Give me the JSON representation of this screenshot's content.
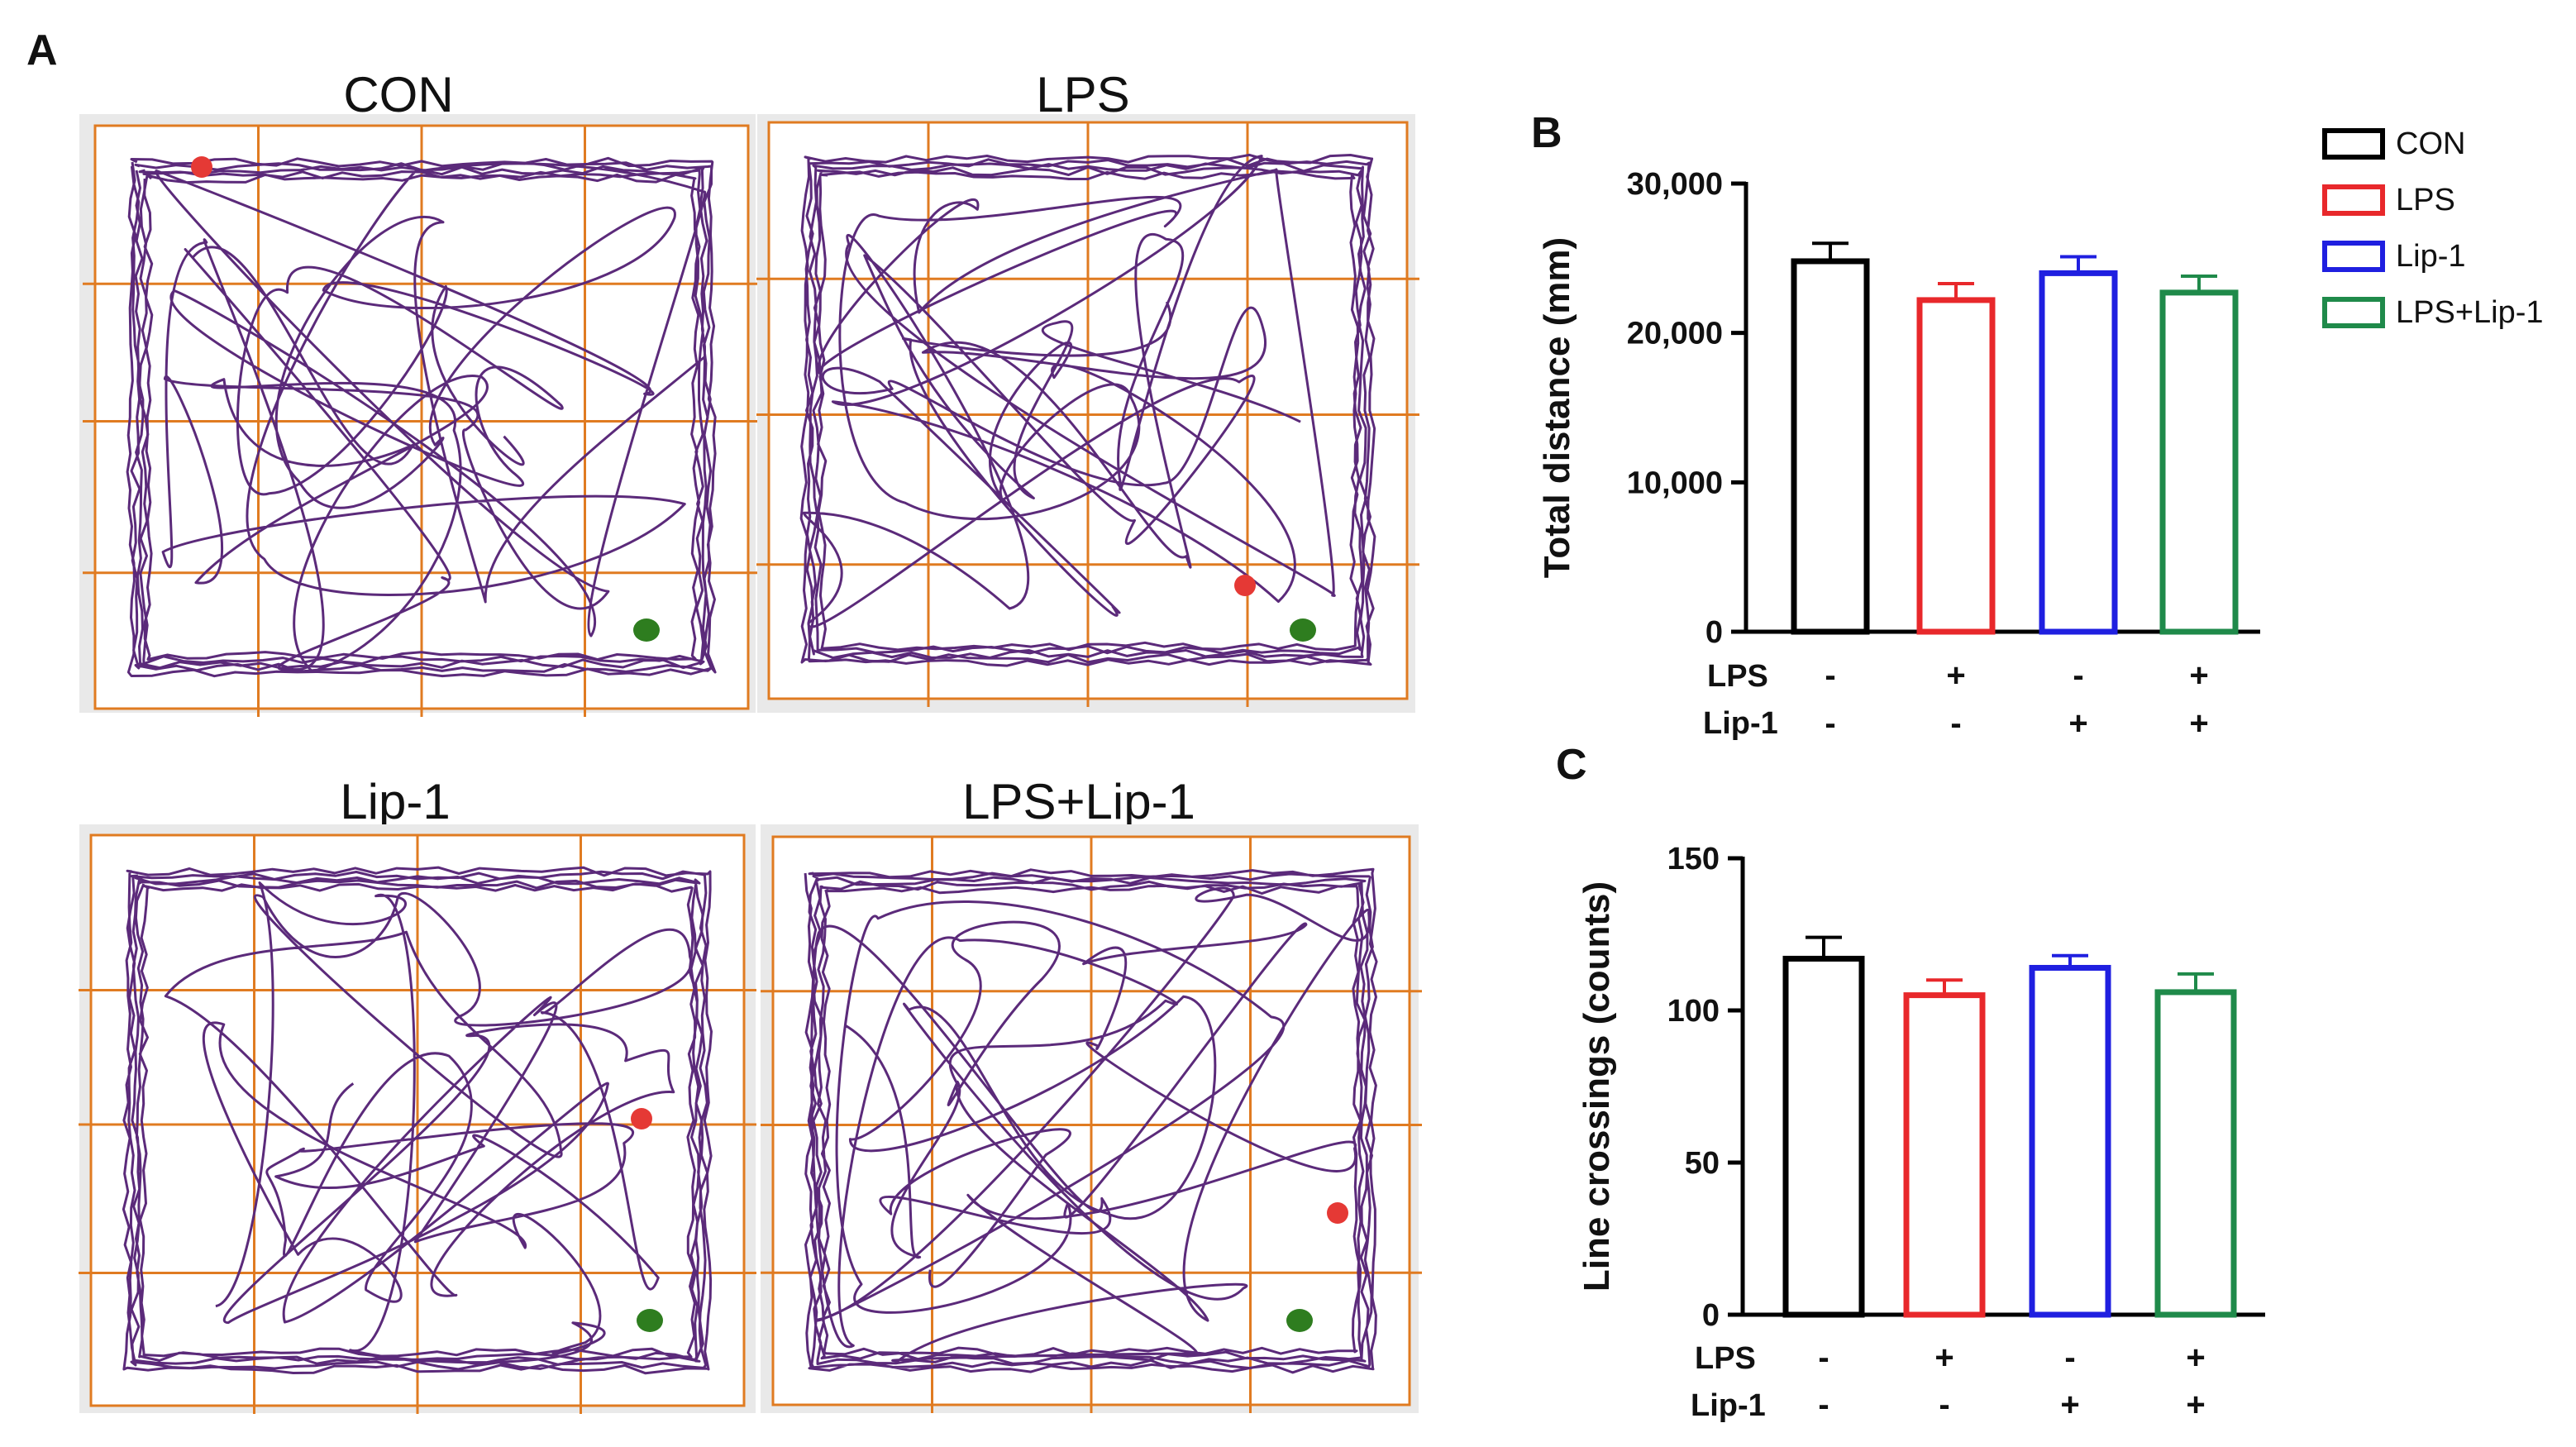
{
  "panel_labels": {
    "a": "A",
    "b": "B",
    "c": "C"
  },
  "track_panels": [
    {
      "title": "CON",
      "start_color": "#e53935",
      "end_color": "#2e7d1f"
    },
    {
      "title": "LPS",
      "start_color": "#e53935",
      "end_color": "#2e7d1f"
    },
    {
      "title": "Lip-1",
      "start_color": "#e53935",
      "end_color": "#2e7d1f"
    },
    {
      "title": "LPS+Lip-1",
      "start_color": "#e53935",
      "end_color": "#2e7d1f"
    }
  ],
  "colors": {
    "track": "#5b2a7a",
    "grid": "#e07b21",
    "panel_bg": "#e9e9e9"
  },
  "conditions": {
    "row1_label": "LPS",
    "row2_label": "Lip-1",
    "row1_signs": [
      "-",
      "+",
      "-",
      "+"
    ],
    "row2_signs": [
      "-",
      "-",
      "+",
      "+"
    ]
  },
  "legend": [
    {
      "label": "CON",
      "color": "#000000"
    },
    {
      "label": "LPS",
      "color": "#e8282b"
    },
    {
      "label": "Lip-1",
      "color": "#1f1fe0"
    },
    {
      "label": "LPS+Lip-1",
      "color": "#1f8a4a"
    }
  ],
  "chart_data": [
    {
      "id": "B",
      "type": "bar",
      "categories": [
        "CON",
        "LPS",
        "Lip-1",
        "LPS+Lip-1"
      ],
      "values": [
        24800,
        22200,
        24000,
        22700
      ],
      "errors": [
        1200,
        1100,
        1100,
        1100
      ],
      "colors": [
        "#000000",
        "#e8282b",
        "#1f1fe0",
        "#1f8a4a"
      ],
      "ylabel": "Total distance (mm)",
      "ylim": [
        0,
        30000
      ],
      "yticks": [
        0,
        10000,
        20000,
        30000
      ],
      "ytick_labels": [
        "0",
        "10,000",
        "20,000",
        "30,000"
      ]
    },
    {
      "id": "C",
      "type": "bar",
      "categories": [
        "CON",
        "LPS",
        "Lip-1",
        "LPS+Lip-1"
      ],
      "values": [
        117,
        105,
        114,
        106
      ],
      "errors": [
        7,
        5,
        4,
        6
      ],
      "colors": [
        "#000000",
        "#e8282b",
        "#1f1fe0",
        "#1f8a4a"
      ],
      "ylabel": "Line crossings (counts)",
      "ylim": [
        0,
        150
      ],
      "yticks": [
        0,
        50,
        100,
        150
      ],
      "ytick_labels": [
        "0",
        "50",
        "100",
        "150"
      ]
    }
  ]
}
